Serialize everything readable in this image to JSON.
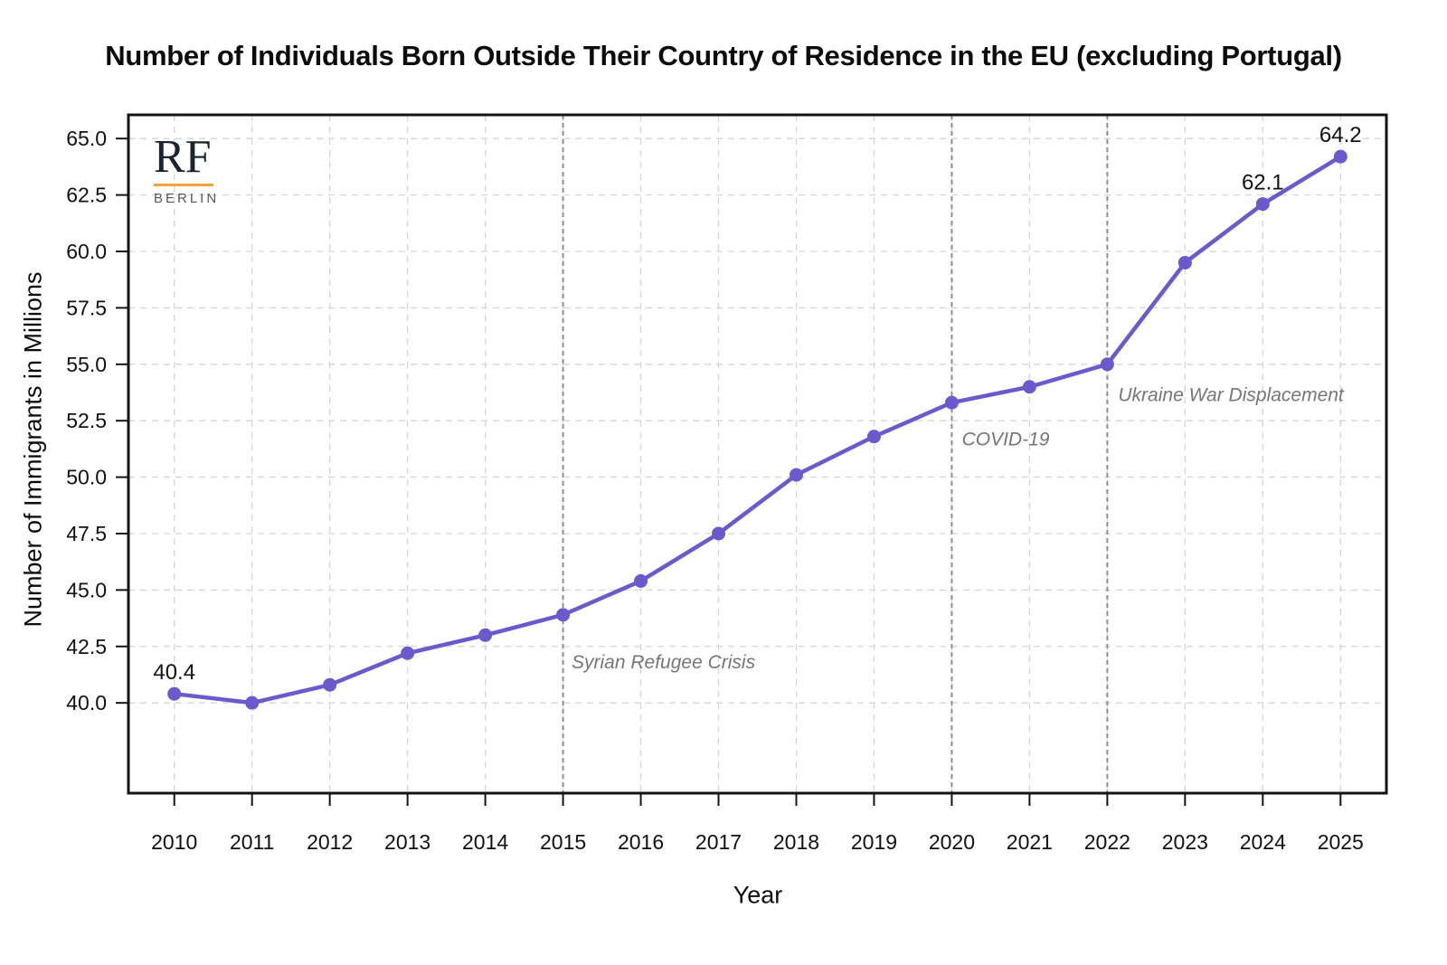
{
  "header": {
    "title": "Number of Individuals Born Outside Their Country of Residence in the EU (excluding Portugal)"
  },
  "logo": {
    "initials": "RF",
    "city": "BERLIN",
    "initials_color": "#1b2430",
    "underline_color": "#f2a33c",
    "city_color": "#4e5c59"
  },
  "chart_data": {
    "type": "line",
    "title": "Number of Individuals Born Outside Their Country of Residence in the EU (excluding Portugal)",
    "xlabel": "Year",
    "ylabel": "Number of Immigrants in Millions",
    "x": [
      2010,
      2011,
      2012,
      2013,
      2014,
      2015,
      2016,
      2017,
      2018,
      2019,
      2020,
      2021,
      2022,
      2023,
      2024,
      2025
    ],
    "values": [
      40.4,
      40.0,
      40.8,
      42.2,
      43.0,
      43.9,
      45.4,
      47.5,
      50.1,
      51.8,
      53.3,
      54.0,
      55.0,
      59.5,
      62.1,
      64.2
    ],
    "point_labels": [
      {
        "x": 2010,
        "label": "40.4"
      },
      {
        "x": 2024,
        "label": "62.1"
      },
      {
        "x": 2025,
        "label": "64.2"
      }
    ],
    "yticks": [
      40.0,
      42.5,
      45.0,
      47.5,
      50.0,
      52.5,
      55.0,
      57.5,
      60.0,
      62.5,
      65.0
    ],
    "xlim": [
      2009.41,
      2025.59
    ],
    "ylim": [
      36.0,
      66.05
    ],
    "grid": true,
    "legend": false,
    "colors": {
      "line": "#6a5acd",
      "marker": "#6a5acd",
      "grid": "#d6d6d6",
      "annotation_line": "#8f8f8f",
      "annotation_text": "#767676",
      "axis": "#141414"
    },
    "annotations": [
      {
        "text": "Syrian Refugee Crisis",
        "line_x": 2015,
        "text_x": 2015.11,
        "text_y": 41.8
      },
      {
        "text": "COVID-19",
        "line_x": 2020,
        "text_x": 2020.13,
        "text_y": 51.68
      },
      {
        "text": "Ukraine War Displacement",
        "line_x": 2022,
        "text_x": 2022.14,
        "text_y": 53.64
      }
    ]
  }
}
